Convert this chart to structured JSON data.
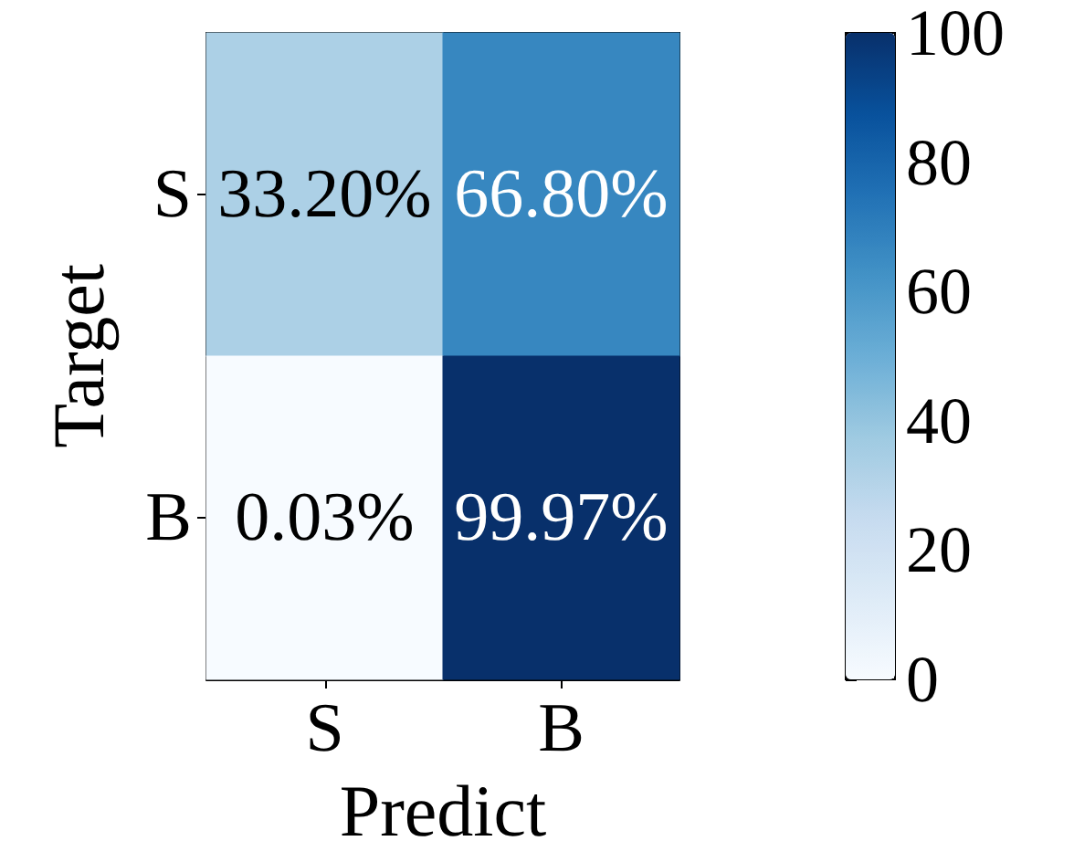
{
  "chart_data": {
    "type": "heatmap",
    "categories": [
      "S",
      "B"
    ],
    "y_categories": [
      "S",
      "B"
    ],
    "cells": [
      [
        33.2,
        66.8
      ],
      [
        0.03,
        99.97
      ]
    ],
    "cell_labels": [
      [
        "33.20%",
        "66.80%"
      ],
      [
        "0.03%",
        "99.97%"
      ]
    ],
    "xlabel": "Predict",
    "ylabel": "Target",
    "clim": [
      0,
      100
    ],
    "cticks": [
      0,
      20,
      40,
      60,
      80,
      100
    ]
  }
}
